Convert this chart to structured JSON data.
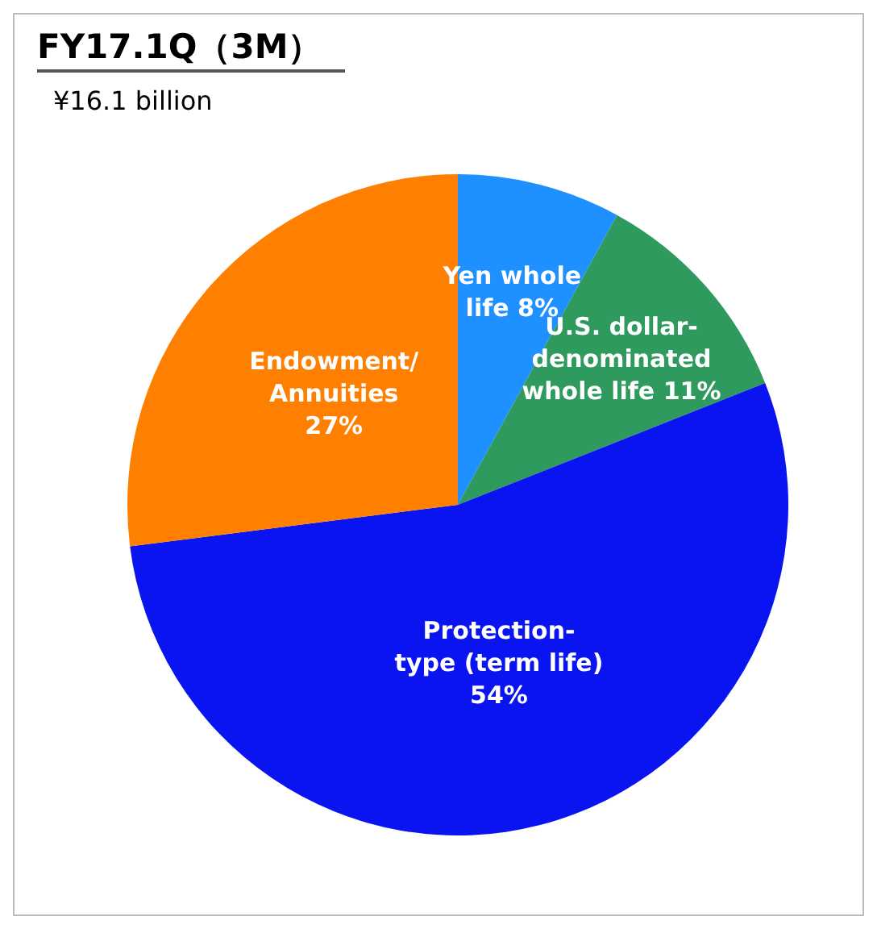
{
  "chart_data": {
    "type": "pie",
    "title": "FY17.1Q（3M）",
    "subtitle": "¥16.1 billion",
    "categories": [
      "Yen whole life",
      "U.S. dollar-denominated whole life",
      "Protection-type (term life)",
      "Endowment/ Annuities"
    ],
    "values": [
      8,
      11,
      54,
      27
    ],
    "colors": [
      "#1e90ff",
      "#2e9a5e",
      "#0a14f0",
      "#ff8000"
    ],
    "value_labels": [
      "8%",
      "11%",
      "54%",
      "27%"
    ],
    "legend": false
  }
}
